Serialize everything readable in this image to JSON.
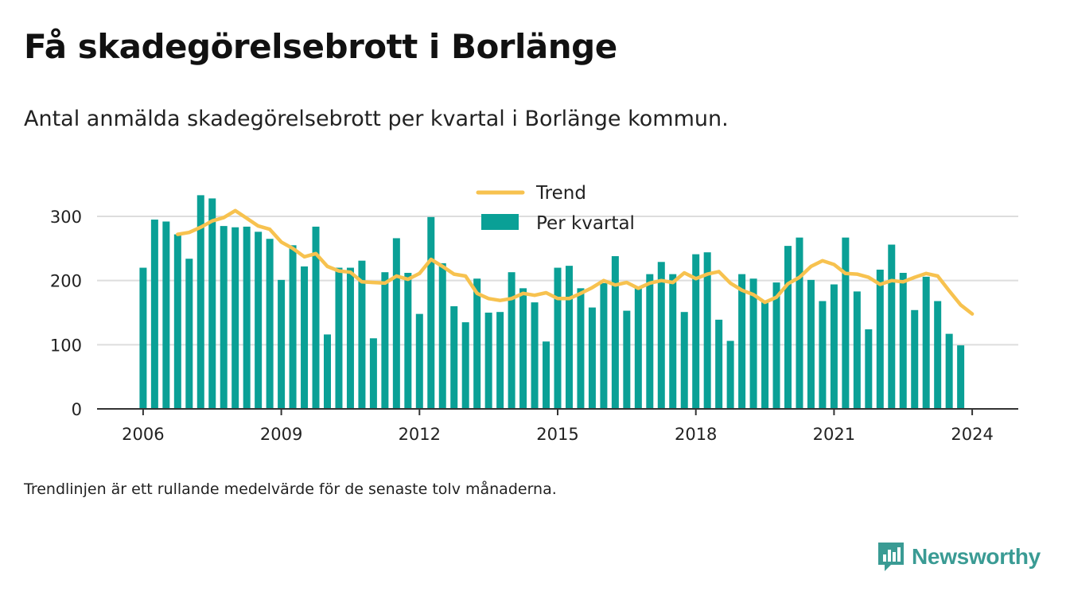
{
  "title": "Få skadegörelsebrott i Borlänge",
  "subtitle": "Antal anmälda skadegörelsebrott per kvartal i Borlänge kommun.",
  "note": "Trendlinjen är ett rullande medelvärde för de senaste tolv månaderna.",
  "brand": "Newsworthy",
  "colors": {
    "bars": "#0aa096",
    "trend": "#f7c24f",
    "grid": "#dddddd",
    "axis": "#333333",
    "brand": "#3a9b94"
  },
  "chart_data": {
    "type": "bar",
    "x_axis": {
      "ticks": [
        2006,
        2009,
        2012,
        2015,
        2018,
        2021,
        2024
      ],
      "range": [
        2005,
        2025
      ]
    },
    "y_axis": {
      "ticks": [
        0,
        100,
        200,
        300
      ],
      "range": [
        0,
        350
      ]
    },
    "grid": true,
    "legend_position": "top-center",
    "series": [
      {
        "name": "Per kvartal",
        "type": "bar",
        "start": 2006,
        "step": 0.25,
        "values": [
          220,
          295,
          292,
          272,
          234,
          333,
          328,
          285,
          283,
          284,
          276,
          265,
          201,
          255,
          222,
          284,
          116,
          220,
          220,
          231,
          110,
          213,
          266,
          212,
          148,
          299,
          227,
          160,
          135,
          203,
          150,
          151,
          213,
          188,
          166,
          105,
          220,
          223,
          188,
          158,
          196,
          238,
          153,
          189,
          210,
          229,
          210,
          151,
          241,
          244,
          139,
          106,
          210,
          203,
          168,
          197,
          254,
          267,
          201,
          168,
          194,
          267,
          183,
          124,
          217,
          256,
          212,
          154,
          206,
          168,
          117,
          99
        ]
      },
      {
        "name": "Trend",
        "type": "line",
        "start": 2006.75,
        "step": 0.25,
        "values": [
          272,
          275,
          283,
          293,
          298,
          309,
          297,
          285,
          280,
          260,
          250,
          237,
          242,
          222,
          215,
          213,
          198,
          197,
          196,
          207,
          202,
          211,
          233,
          222,
          210,
          207,
          180,
          172,
          169,
          172,
          180,
          177,
          181,
          172,
          172,
          180,
          189,
          200,
          193,
          197,
          188,
          196,
          200,
          197,
          212,
          203,
          210,
          214,
          196,
          185,
          178,
          166,
          174,
          195,
          205,
          222,
          231,
          225,
          211,
          210,
          205,
          194,
          200,
          198,
          205,
          211,
          207,
          184,
          162,
          148
        ]
      }
    ]
  }
}
